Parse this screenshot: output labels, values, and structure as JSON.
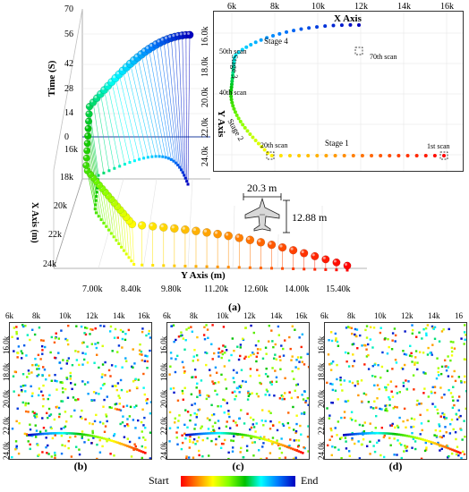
{
  "figure": {
    "panel_a_caption": "(a)",
    "panel_b_caption": "(b)",
    "panel_c_caption": "(c)",
    "panel_d_caption": "(d)"
  },
  "main_plot": {
    "z_axis_title": "Time (S)",
    "z_ticks": [
      "70",
      "56",
      "42",
      "28",
      "14",
      "0"
    ],
    "x_axis_title": "X Axis (m)",
    "x_ticks": [
      "16k",
      "18k",
      "20k",
      "22k",
      "24k"
    ],
    "y_axis_title": "Y Axis (m)",
    "y_ticks": [
      "7.00k",
      "8.40k",
      "9.80k",
      "11.20k",
      "12.60k",
      "14.00k",
      "15.40k"
    ],
    "dimension_width": "20.3 m",
    "dimension_length": "12.88 m"
  },
  "inset_plot": {
    "x_axis_title": "X Axis",
    "y_axis_title": "Y Axis",
    "x_ticks": [
      "6k",
      "8k",
      "10k",
      "12k",
      "14k",
      "16k"
    ],
    "y_ticks": [
      "16.0k",
      "18.0k",
      "20.0k",
      "22.0k",
      "24.0k"
    ],
    "stage_labels": [
      "Stage 1",
      "Stage 2",
      "Stage 3",
      "Stage 4"
    ],
    "scan_labels": [
      "1st scan",
      "20th scan",
      "40th scan",
      "50th scan",
      "70th scan"
    ]
  },
  "noise_panels": {
    "x_ticks": [
      "6k",
      "8k",
      "10k",
      "12k",
      "14k",
      "16k"
    ],
    "x_ticks_d": [
      "6k",
      "8k",
      "10k",
      "12k",
      "14k",
      "16"
    ],
    "y_ticks": [
      "16.0k",
      "18.0k",
      "20.0k",
      "22.0k",
      "24.0k"
    ]
  },
  "colorbar": {
    "start_label": "Start",
    "end_label": "End"
  }
}
